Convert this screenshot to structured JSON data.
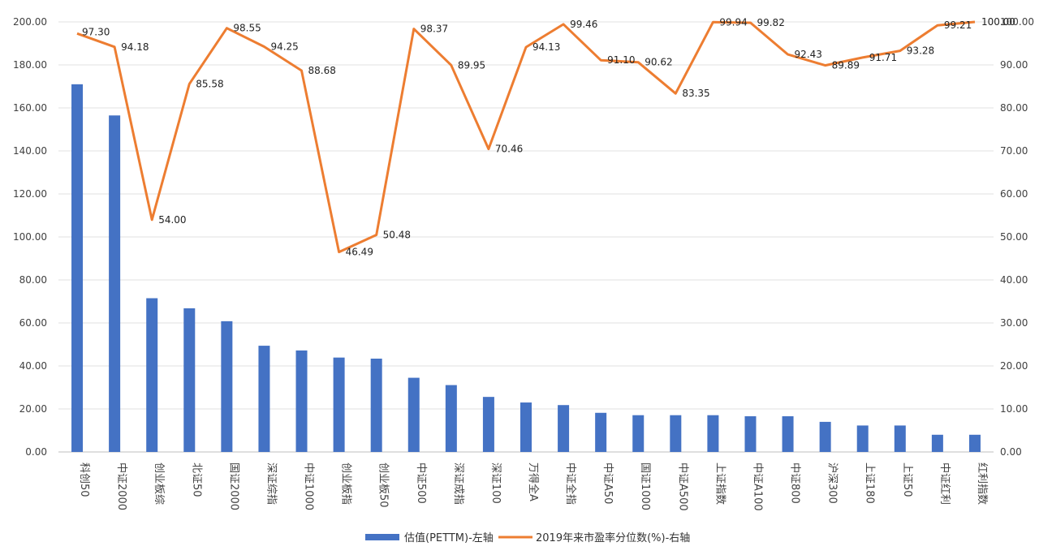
{
  "chart_data": {
    "type": "bar+line",
    "categories": [
      "科创50",
      "中证2000",
      "创业板综",
      "北证50",
      "国证2000",
      "深证综指",
      "中证1000",
      "创业板指",
      "创业板50",
      "中证500",
      "深证成指",
      "深证100",
      "万得全A",
      "中证全指",
      "中证A50",
      "国证1000",
      "中证A500",
      "上证指数",
      "中证A100",
      "中证800",
      "沪深300",
      "上证180",
      "上证50",
      "中证红利",
      "红利指数"
    ],
    "series": [
      {
        "name": "估值(PETTM)-左轴",
        "type": "bar",
        "axis": "left",
        "color": "#4472C4",
        "values": [
          171.0,
          156.5,
          71.5,
          66.8,
          60.8,
          49.4,
          47.2,
          43.9,
          43.4,
          34.5,
          31.1,
          25.6,
          23.0,
          21.8,
          18.2,
          17.1,
          17.1,
          17.1,
          16.6,
          16.6,
          14.0,
          12.3,
          12.3,
          8.0,
          8.0
        ]
      },
      {
        "name": "2019年来市盈率分位数(%)-右轴",
        "type": "line",
        "axis": "right",
        "color": "#ED7D31",
        "values": [
          97.3,
          94.18,
          54.0,
          85.58,
          98.55,
          94.25,
          88.68,
          46.49,
          50.48,
          98.37,
          89.95,
          70.46,
          94.13,
          99.46,
          91.1,
          90.62,
          83.35,
          99.94,
          99.82,
          92.43,
          89.89,
          91.71,
          93.28,
          99.21,
          100.0
        ],
        "labels": [
          "97.30",
          "94.18",
          "54.00",
          "85.58",
          "98.55",
          "94.25",
          "88.68",
          "46.49",
          "50.48",
          "98.37",
          "89.95",
          "70.46",
          "94.13",
          "99.46",
          "91.10",
          "90.62",
          "83.35",
          "99.94",
          "99.82",
          "92.43",
          "89.89",
          "91.71",
          "93.28",
          "99.21",
          "100.00"
        ]
      }
    ],
    "y_left": {
      "range": [
        0,
        200
      ],
      "ticks": [
        "0.00",
        "20.00",
        "40.00",
        "60.00",
        "80.00",
        "100.00",
        "120.00",
        "140.00",
        "160.00",
        "180.00",
        "200.00"
      ]
    },
    "y_right": {
      "range": [
        0,
        100
      ],
      "ticks": [
        "0.00",
        "10.00",
        "20.00",
        "30.00",
        "40.00",
        "50.00",
        "60.00",
        "70.00",
        "80.00",
        "90.00",
        "100.00"
      ]
    },
    "grid": true,
    "legend": "bottom"
  }
}
